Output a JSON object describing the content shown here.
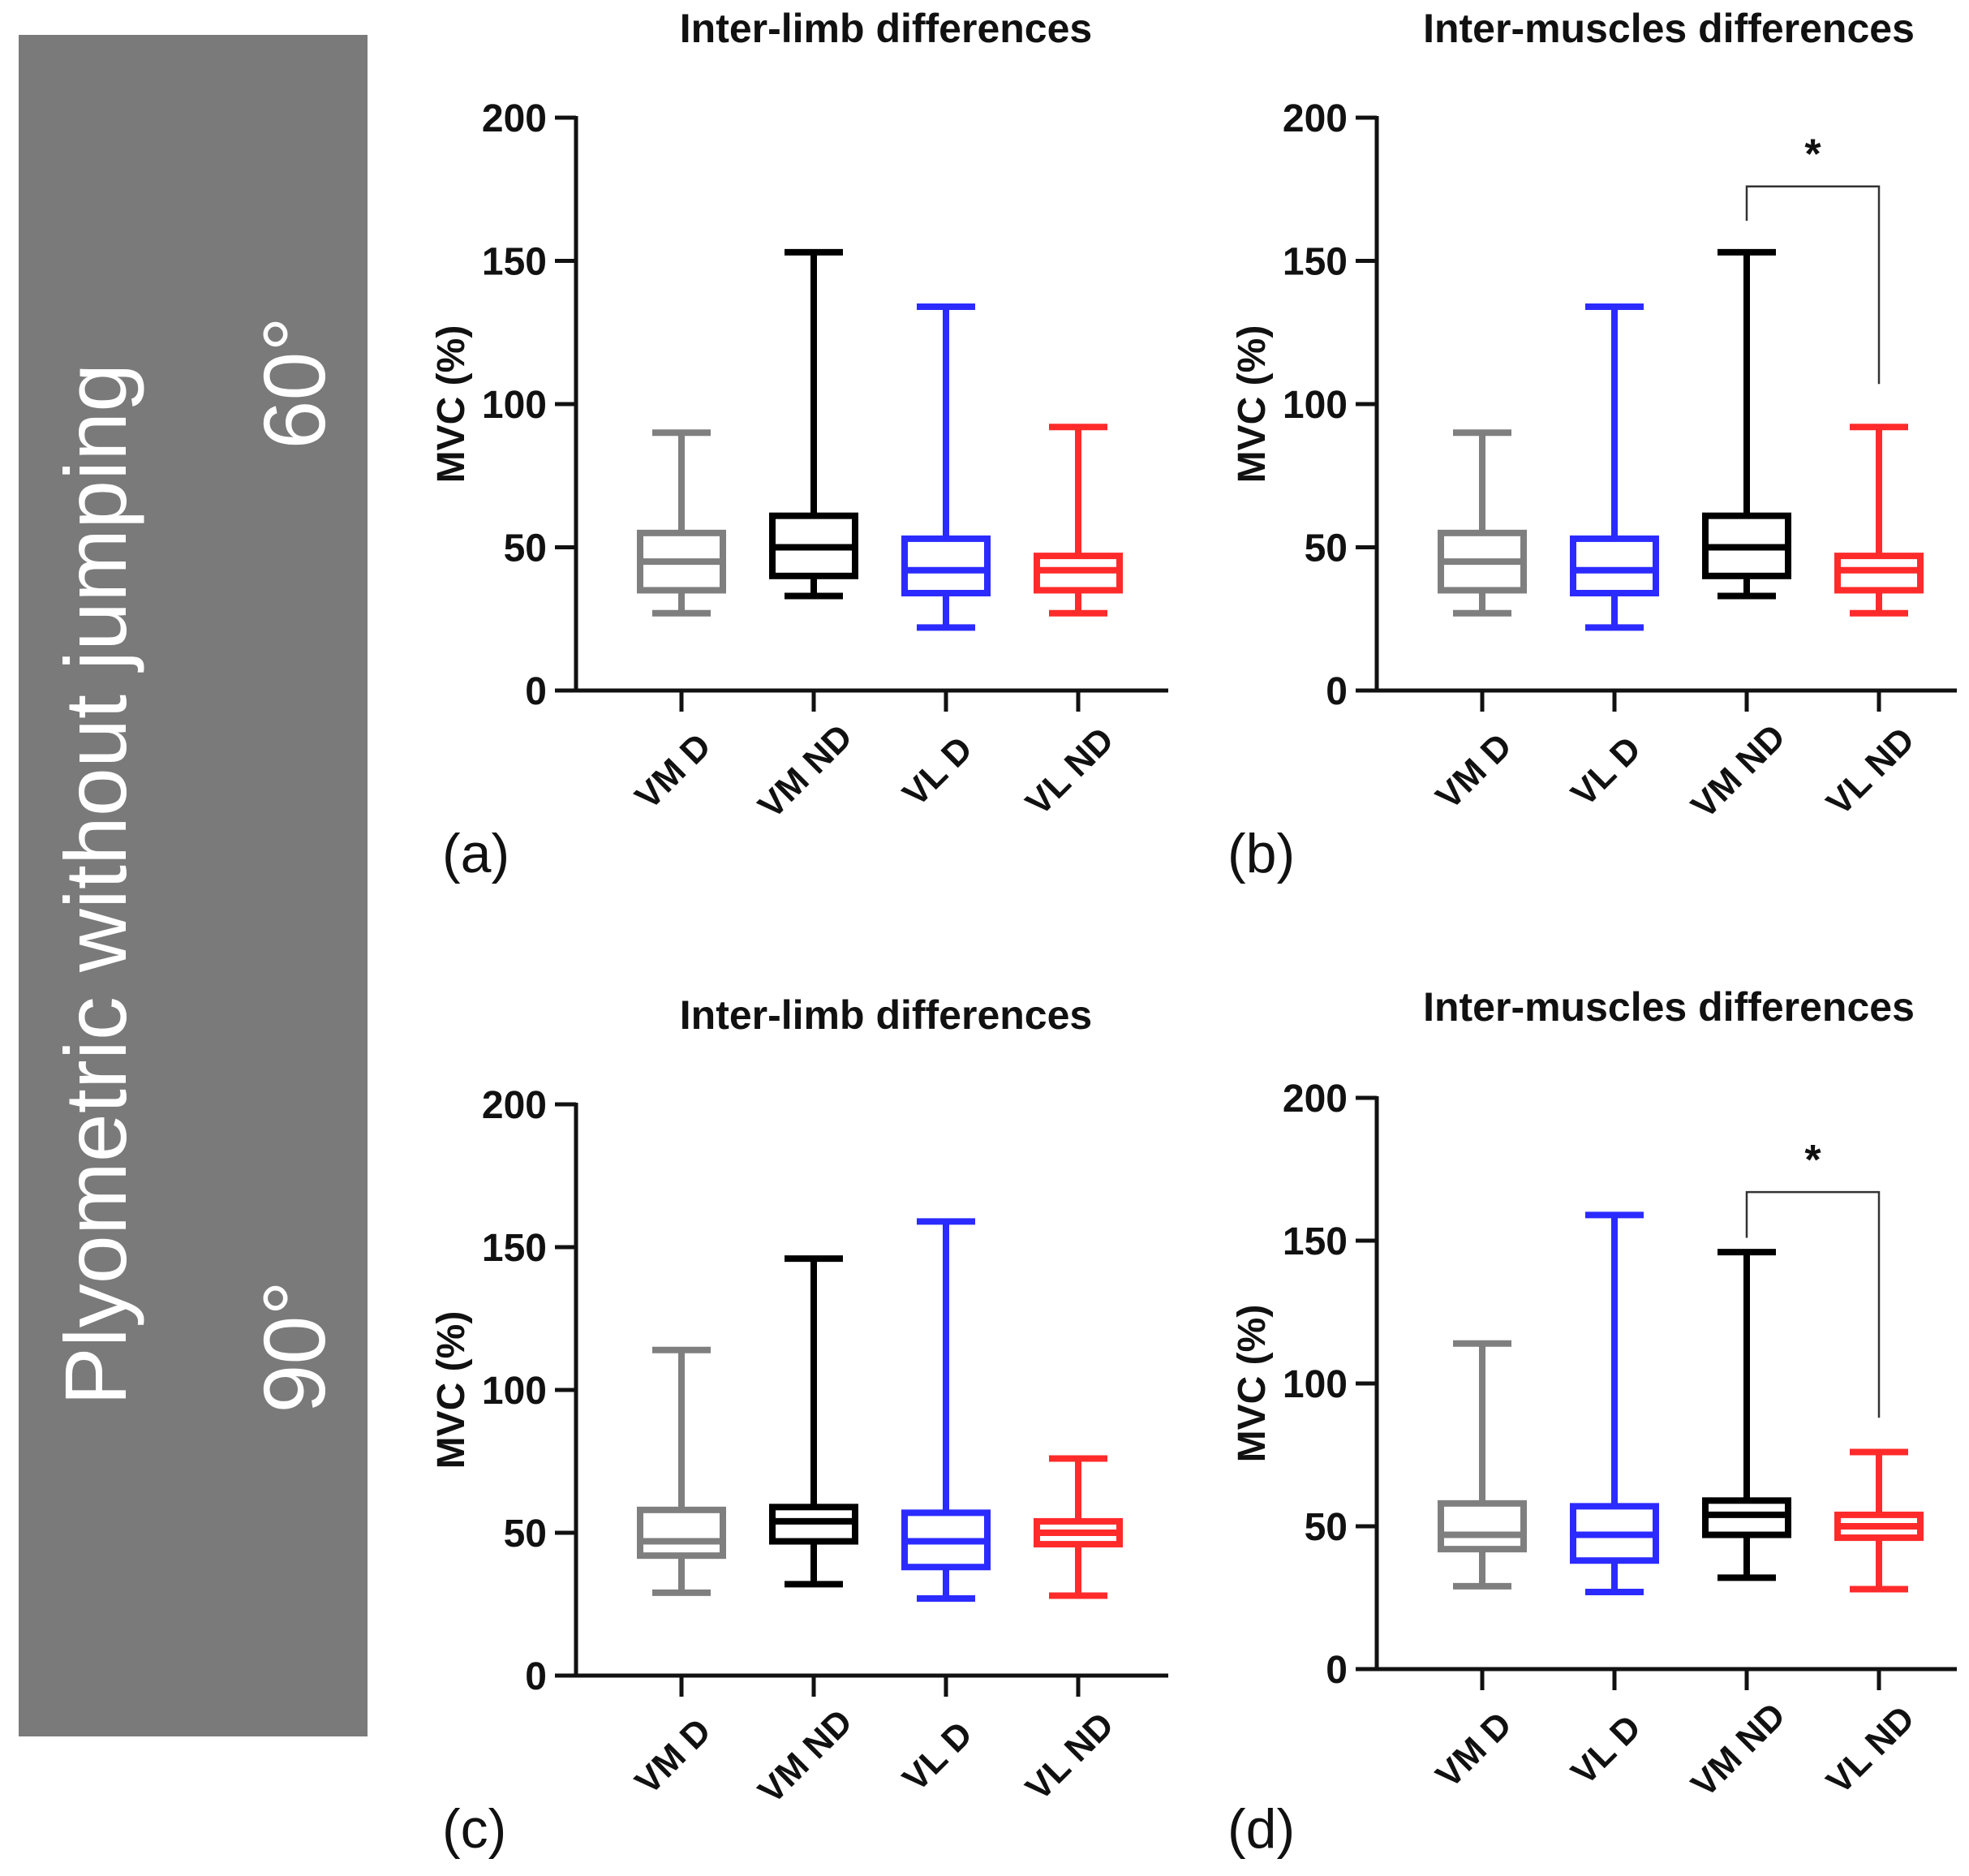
{
  "side_panel": {
    "label": "Plyometric without jumping",
    "angle_top": "60°",
    "angle_bottom": "90°"
  },
  "colors": {
    "VM D": "#7f7f7f",
    "VM ND": "#000000",
    "VL D": "#2b2bff",
    "VL ND": "#ff2b2b",
    "panel": "#7a7a7a"
  },
  "chart_data": [
    {
      "type": "boxplot",
      "panel_label": "(a)",
      "title": "Inter-limb differences",
      "ylabel": "MVC (%)",
      "ylim": [
        0,
        200
      ],
      "yticks": [
        0,
        50,
        100,
        150,
        200
      ],
      "categories": [
        "VM D",
        "VM ND",
        "VL D",
        "VL ND"
      ],
      "boxes": [
        {
          "min": 27,
          "q1": 35,
          "median": 45,
          "q3": 55,
          "max": 90
        },
        {
          "min": 33,
          "q1": 40,
          "median": 50,
          "q3": 61,
          "max": 153
        },
        {
          "min": 22,
          "q1": 34,
          "median": 42,
          "q3": 53,
          "max": 134
        },
        {
          "min": 27,
          "q1": 35,
          "median": 42,
          "q3": 47,
          "max": 92
        }
      ]
    },
    {
      "type": "boxplot",
      "panel_label": "(b)",
      "title": "Inter-muscles differences",
      "ylabel": "MVC (%)",
      "ylim": [
        0,
        200
      ],
      "yticks": [
        0,
        50,
        100,
        150,
        200
      ],
      "categories": [
        "VM D",
        "VL D",
        "VM ND",
        "VL ND"
      ],
      "boxes": [
        {
          "min": 27,
          "q1": 35,
          "median": 45,
          "q3": 55,
          "max": 90
        },
        {
          "min": 22,
          "q1": 34,
          "median": 42,
          "q3": 53,
          "max": 134
        },
        {
          "min": 33,
          "q1": 40,
          "median": 50,
          "q3": 61,
          "max": 153
        },
        {
          "min": 27,
          "q1": 35,
          "median": 42,
          "q3": 47,
          "max": 92
        }
      ],
      "significance": {
        "from": 2,
        "to": 3,
        "label": "*",
        "bracket_y": 176,
        "left_drop": 164,
        "right_drop": 107
      }
    },
    {
      "type": "boxplot",
      "panel_label": "(c)",
      "title": "Inter-limb differences",
      "ylabel": "MVC (%)",
      "ylim": [
        0,
        200
      ],
      "yticks": [
        0,
        50,
        100,
        150,
        200
      ],
      "categories": [
        "VM D",
        "VM ND",
        "VL D",
        "VL ND"
      ],
      "boxes": [
        {
          "min": 29,
          "q1": 42,
          "median": 47,
          "q3": 58,
          "max": 114
        },
        {
          "min": 32,
          "q1": 47,
          "median": 54,
          "q3": 59,
          "max": 146
        },
        {
          "min": 27,
          "q1": 38,
          "median": 47,
          "q3": 57,
          "max": 159
        },
        {
          "min": 28,
          "q1": 46,
          "median": 50,
          "q3": 54,
          "max": 76
        }
      ]
    },
    {
      "type": "boxplot",
      "panel_label": "(d)",
      "title": "Inter-muscles differences",
      "ylabel": "MVC (%)",
      "ylim": [
        0,
        200
      ],
      "yticks": [
        0,
        50,
        100,
        150,
        200
      ],
      "categories": [
        "VM D",
        "VL D",
        "VM ND",
        "VL ND"
      ],
      "boxes": [
        {
          "min": 29,
          "q1": 42,
          "median": 47,
          "q3": 58,
          "max": 114
        },
        {
          "min": 27,
          "q1": 38,
          "median": 47,
          "q3": 57,
          "max": 159
        },
        {
          "min": 32,
          "q1": 47,
          "median": 54,
          "q3": 59,
          "max": 146
        },
        {
          "min": 28,
          "q1": 46,
          "median": 50,
          "q3": 54,
          "max": 76
        }
      ],
      "significance": {
        "from": 2,
        "to": 3,
        "label": "*",
        "bracket_y": 167,
        "left_drop": 151,
        "right_drop": 88
      }
    }
  ]
}
